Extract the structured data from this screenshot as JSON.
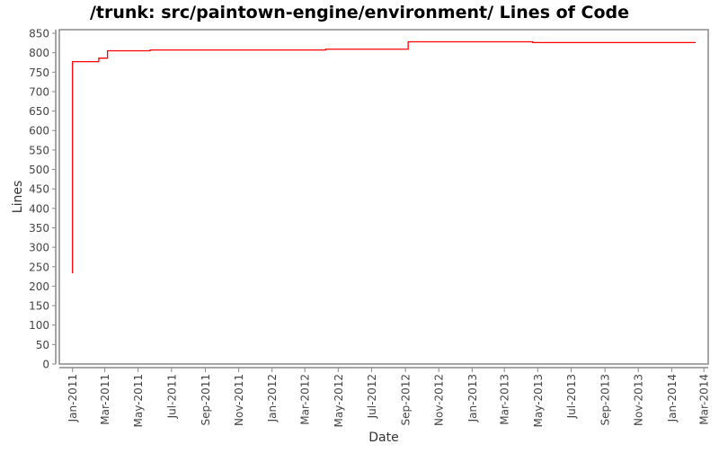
{
  "chart_data": {
    "type": "line",
    "title": "/trunk: src/paintown-engine/environment/ Lines of Code",
    "xlabel": "Date",
    "ylabel": "Lines",
    "ylim": [
      0,
      850
    ],
    "xlim": [
      "2010-12-28",
      "2014-03-08"
    ],
    "yticks": [
      0,
      50,
      100,
      150,
      200,
      250,
      300,
      350,
      400,
      450,
      500,
      550,
      600,
      650,
      700,
      750,
      800,
      850
    ],
    "xticks": [
      {
        "date": "2011-01-01",
        "label": "Jan-2011"
      },
      {
        "date": "2011-03-01",
        "label": "Mar-2011"
      },
      {
        "date": "2011-05-01",
        "label": "May-2011"
      },
      {
        "date": "2011-07-01",
        "label": "Jul-2011"
      },
      {
        "date": "2011-09-01",
        "label": "Sep-2011"
      },
      {
        "date": "2011-11-01",
        "label": "Nov-2011"
      },
      {
        "date": "2012-01-01",
        "label": "Jan-2012"
      },
      {
        "date": "2012-03-01",
        "label": "Mar-2012"
      },
      {
        "date": "2012-05-01",
        "label": "May-2012"
      },
      {
        "date": "2012-07-01",
        "label": "Jul-2012"
      },
      {
        "date": "2012-09-01",
        "label": "Sep-2012"
      },
      {
        "date": "2012-11-01",
        "label": "Nov-2012"
      },
      {
        "date": "2013-01-01",
        "label": "Jan-2013"
      },
      {
        "date": "2013-03-01",
        "label": "Mar-2013"
      },
      {
        "date": "2013-05-01",
        "label": "May-2013"
      },
      {
        "date": "2013-07-01",
        "label": "Jul-2013"
      },
      {
        "date": "2013-09-01",
        "label": "Sep-2013"
      },
      {
        "date": "2013-11-01",
        "label": "Nov-2013"
      },
      {
        "date": "2014-01-01",
        "label": "Jan-2014"
      },
      {
        "date": "2014-03-01",
        "label": "Mar-2014"
      }
    ],
    "step": true,
    "grid": false,
    "series": [
      {
        "color": "#ff0000",
        "points": [
          {
            "x": "2011-01-01",
            "y": 233
          },
          {
            "x": "2011-01-01",
            "y": 777
          },
          {
            "x": "2011-02-18",
            "y": 786
          },
          {
            "x": "2011-03-06",
            "y": 805
          },
          {
            "x": "2011-05-23",
            "y": 807
          },
          {
            "x": "2012-04-08",
            "y": 809
          },
          {
            "x": "2012-09-06",
            "y": 828
          },
          {
            "x": "2013-04-22",
            "y": 826
          },
          {
            "x": "2014-02-14",
            "y": 826
          }
        ]
      }
    ]
  }
}
